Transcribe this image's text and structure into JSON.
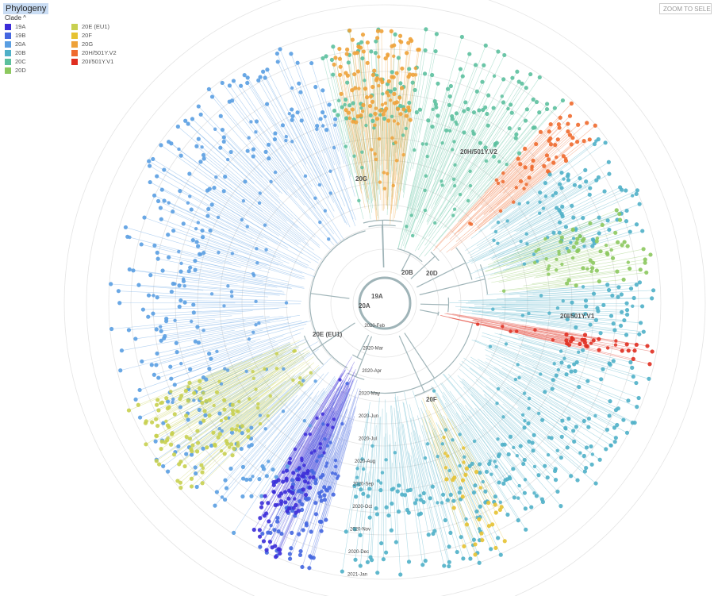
{
  "panel": {
    "title": "Phylogeny",
    "zoom_button": "ZOOM TO SELE"
  },
  "legend": {
    "header": "Clade ^",
    "items": [
      {
        "label": "19A",
        "color": "#3b2cd8"
      },
      {
        "label": "19B",
        "color": "#4466e0"
      },
      {
        "label": "20A",
        "color": "#5a9ee2"
      },
      {
        "label": "20B",
        "color": "#4fb0c8"
      },
      {
        "label": "20C",
        "color": "#5cc09e"
      },
      {
        "label": "20D",
        "color": "#8cc85e"
      },
      {
        "label": "20E (EU1)",
        "color": "#c8d050"
      },
      {
        "label": "20F",
        "color": "#e6c232"
      },
      {
        "label": "20G",
        "color": "#eea23a"
      },
      {
        "label": "20H/501Y.V2",
        "color": "#ef6a2e"
      },
      {
        "label": "20I/501Y.V1",
        "color": "#e02e20"
      }
    ]
  },
  "time_axis": [
    "2020-Feb",
    "2020-Mar",
    "2020-Apr",
    "2020-May",
    "2020-Jun",
    "2020-Jul",
    "2020-Aug",
    "2020-Sep",
    "2020-Oct",
    "2020-Nov",
    "2020-Dec",
    "2021-Jan"
  ],
  "clade_labels": [
    "19A",
    "20B",
    "20D",
    "20G",
    "20H/501Y.V2",
    "20I/501Y.V1",
    "20F",
    "20E (EU1)",
    "20A"
  ],
  "sectors": [
    {
      "clade": "20A",
      "color": "#5a9ee2",
      "start": 120,
      "end": 255,
      "count": 240
    },
    {
      "clade": "20C",
      "color": "#5cc09e",
      "start": 255,
      "end": 282,
      "count": 60
    },
    {
      "clade": "20G",
      "color": "#eea23a",
      "start": 258,
      "end": 278,
      "count": 90
    },
    {
      "clade": "20C",
      "color": "#5cc09e",
      "start": 283,
      "end": 312,
      "count": 70
    },
    {
      "clade": "20H/501Y.V2",
      "color": "#ef6a2e",
      "start": 312,
      "end": 322,
      "count": 40
    },
    {
      "clade": "20B",
      "color": "#4fb0c8",
      "start": 322,
      "end": 345,
      "count": 60
    },
    {
      "clade": "20D",
      "color": "#8cc85e",
      "start": 338,
      "end": 355,
      "count": 45
    },
    {
      "clade": "20B",
      "color": "#4fb0c8",
      "start": 355,
      "end": 368,
      "count": 40
    },
    {
      "clade": "20I/501Y.V1",
      "color": "#e02e20",
      "start": 369,
      "end": 373,
      "count": 25
    },
    {
      "clade": "20B",
      "color": "#4fb0c8",
      "start": 373,
      "end": 460,
      "count": 200
    },
    {
      "clade": "20F",
      "color": "#e6c232",
      "start": 420,
      "end": 432,
      "count": 25
    },
    {
      "clade": "19B",
      "color": "#4466e0",
      "start": 105,
      "end": 118,
      "count": 70
    },
    {
      "clade": "19A",
      "color": "#3b2cd8",
      "start": 112,
      "end": 122,
      "count": 60
    },
    {
      "clade": "20E (EU1)",
      "color": "#c8d050",
      "start": 135,
      "end": 158,
      "count": 90
    }
  ]
}
